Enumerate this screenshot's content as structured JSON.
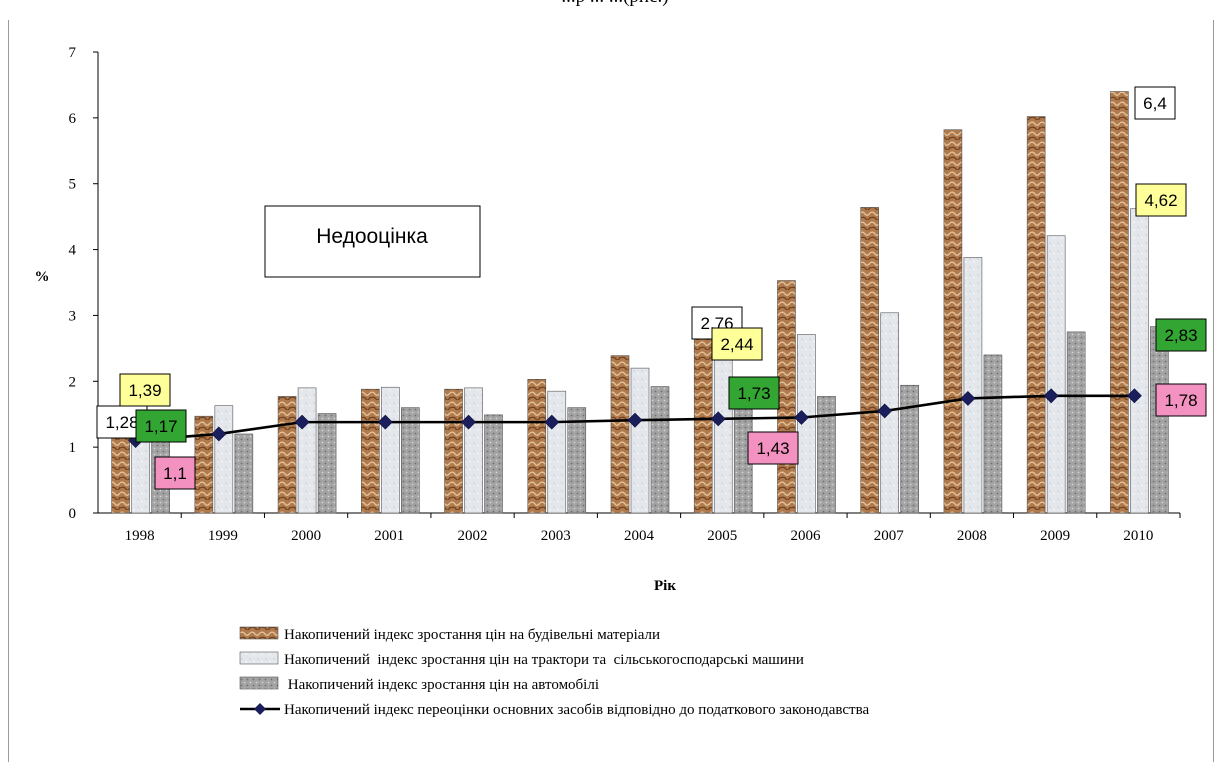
{
  "caption": "...р ... ...(рис.)",
  "chart_data": {
    "type": "bar",
    "xlabel": "Рік",
    "ylabel": "%",
    "ylim": [
      0,
      7
    ],
    "yticks": [
      "0",
      "1",
      "2",
      "3",
      "4",
      "5",
      "6",
      "7"
    ],
    "grid": false,
    "legend_position": "bottom-center",
    "annotation": "Недооцінка",
    "categories": [
      "1998",
      "1999",
      "2000",
      "2001",
      "2002",
      "2003",
      "2004",
      "2005",
      "2006",
      "2007",
      "2008",
      "2009",
      "2010"
    ],
    "series": [
      {
        "name": "Накопичений індекс зростання цін на будівельні матеріали",
        "kind": "bar",
        "color": "#b07a4c",
        "values": [
          1.28,
          1.47,
          1.77,
          1.88,
          1.88,
          2.03,
          2.39,
          2.76,
          3.53,
          4.64,
          5.82,
          6.02,
          6.4
        ]
      },
      {
        "name": "Накопичений  індекс зростання цін на трактори та  сільськогосподарські машини",
        "kind": "bar",
        "color": "#e4e7ec",
        "values": [
          1.39,
          1.63,
          1.9,
          1.91,
          1.9,
          1.85,
          2.2,
          2.44,
          2.71,
          3.04,
          3.88,
          4.21,
          4.62
        ]
      },
      {
        "name": " Накопичений індекс зростання цін на автомобілі",
        "kind": "bar",
        "color": "#9c9c9c",
        "values": [
          1.17,
          1.2,
          1.51,
          1.6,
          1.49,
          1.6,
          1.92,
          1.73,
          1.77,
          1.94,
          2.4,
          2.75,
          2.83
        ]
      },
      {
        "name": "Накопичений індекс переоцінки основних засобів відповідно до податкового законодавства",
        "kind": "line",
        "color": "#1a1f5c",
        "values": [
          1.1,
          1.2,
          1.38,
          1.38,
          1.38,
          1.38,
          1.41,
          1.43,
          1.45,
          1.55,
          1.74,
          1.78,
          1.78
        ]
      }
    ],
    "data_labels": [
      {
        "series": 0,
        "index": 0,
        "text": "1,28",
        "fill": "#ffffff"
      },
      {
        "series": 1,
        "index": 0,
        "text": "1,39",
        "fill": "#ffff99"
      },
      {
        "series": 2,
        "index": 0,
        "text": "1,17",
        "fill": "#33a532"
      },
      {
        "series": 3,
        "index": 0,
        "text": "1,1",
        "fill": "#f391c0"
      },
      {
        "series": 0,
        "index": 7,
        "text": "2,76",
        "fill": "#ffffff"
      },
      {
        "series": 1,
        "index": 7,
        "text": "2,44",
        "fill": "#ffff99"
      },
      {
        "series": 2,
        "index": 7,
        "text": "1,73",
        "fill": "#33a532"
      },
      {
        "series": 3,
        "index": 7,
        "text": "1,43",
        "fill": "#f391c0"
      },
      {
        "series": 0,
        "index": 12,
        "text": "6,4",
        "fill": "#ffffff"
      },
      {
        "series": 1,
        "index": 12,
        "text": "4,62",
        "fill": "#ffff99"
      },
      {
        "series": 2,
        "index": 12,
        "text": "2,83",
        "fill": "#33a532"
      },
      {
        "series": 3,
        "index": 12,
        "text": "1,78",
        "fill": "#f391c0"
      }
    ]
  }
}
